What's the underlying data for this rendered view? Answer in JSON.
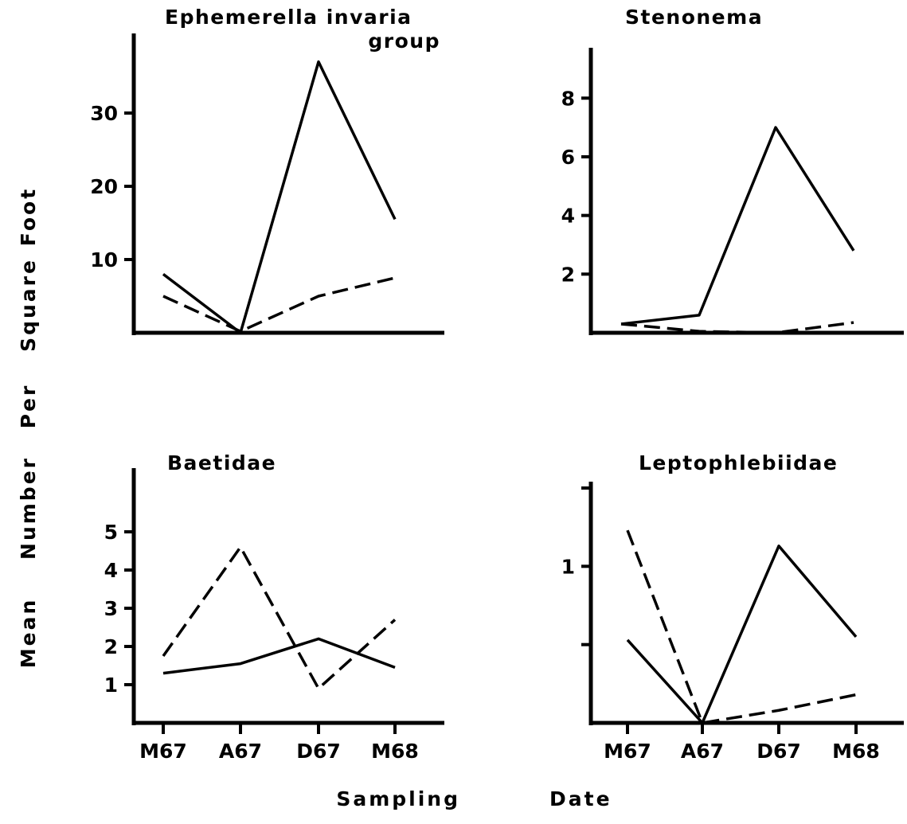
{
  "figure": {
    "ylabel": [
      "Mean",
      "Number",
      "Per",
      "Square",
      "Foot"
    ],
    "xlabel": [
      "Sampling",
      "Date"
    ]
  },
  "chart_data": [
    {
      "type": "line",
      "title": [
        "Ephemerella invaria",
        "group"
      ],
      "categories": [
        "M67",
        "A67",
        "D67",
        "M68"
      ],
      "show_category_labels": false,
      "ylim": [
        0,
        40
      ],
      "yticks": [
        10,
        20,
        30
      ],
      "series": [
        {
          "style": "solid",
          "values": [
            8,
            0,
            37,
            15.5
          ]
        },
        {
          "style": "dashed",
          "values": [
            5,
            0.2,
            5,
            7.5
          ]
        }
      ]
    },
    {
      "type": "line",
      "title": [
        "Stenonema"
      ],
      "categories": [
        "M67",
        "A67",
        "D67",
        "M68"
      ],
      "show_category_labels": false,
      "ylim": [
        0,
        9.5
      ],
      "yticks": [
        2,
        4,
        6,
        8
      ],
      "series": [
        {
          "style": "solid",
          "values": [
            0.3,
            0.6,
            7,
            2.8
          ]
        },
        {
          "style": "dashed",
          "values": [
            0.3,
            0.05,
            0,
            0.35
          ]
        }
      ]
    },
    {
      "type": "line",
      "title": [
        "Baetidae"
      ],
      "categories": [
        "M67",
        "A67",
        "D67",
        "M68"
      ],
      "show_category_labels": true,
      "ylim": [
        0,
        6.5
      ],
      "yticks": [
        1,
        2,
        3,
        4,
        5
      ],
      "ytick_labels": [
        "1",
        "2",
        "3",
        "4",
        "5"
      ],
      "series": [
        {
          "style": "solid",
          "values": [
            1.3,
            1.55,
            2.2,
            1.45
          ]
        },
        {
          "style": "dashed",
          "values": [
            1.75,
            4.6,
            0.9,
            2.7
          ]
        }
      ]
    },
    {
      "type": "line",
      "title": [
        "Leptophlebiidae"
      ],
      "categories": [
        "M67",
        "A67",
        "D67",
        "M68"
      ],
      "show_category_labels": true,
      "ylim": [
        0,
        1.5
      ],
      "yticks": [
        0.5,
        1,
        1.5
      ],
      "ytick_labels": [
        "",
        "1",
        ""
      ],
      "series": [
        {
          "style": "solid",
          "values": [
            0.53,
            0,
            1.13,
            0.55
          ]
        },
        {
          "style": "dashed",
          "values": [
            1.23,
            0,
            0.08,
            0.18
          ]
        }
      ]
    }
  ]
}
